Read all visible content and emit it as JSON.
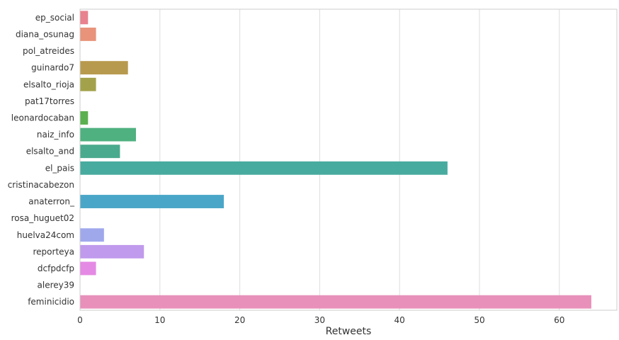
{
  "chart_data": {
    "type": "bar",
    "orientation": "horizontal",
    "categories": [
      "ep_social",
      "diana_osunag",
      "pol_atreides",
      "guinardo7",
      "elsalto_rioja",
      "pat17torres",
      "leonardocaban",
      "naiz_info",
      "elsalto_and",
      "el_pais",
      "cristinacabezon",
      "anaterron_",
      "rosa_huguet02",
      "huelva24com",
      "reporteya",
      "dcfpdcfp",
      "alerey39",
      "feminicidio"
    ],
    "values": [
      1,
      2,
      0,
      6,
      2,
      0,
      1,
      7,
      5,
      46,
      0,
      18,
      0,
      3,
      8,
      2,
      0,
      64
    ],
    "colors": [
      "#e8828e",
      "#e8937a",
      "#d9a36a",
      "#b89a4e",
      "#a3a24a",
      "#8fa84a",
      "#5bb050",
      "#4fb080",
      "#4aaa8e",
      "#48ab9f",
      "#4aa8b2",
      "#4aa6c8",
      "#6aa8e4",
      "#a0a8ec",
      "#c09aec",
      "#e48ae4",
      "#e888cc",
      "#e890ba"
    ],
    "xlabel": "Retweets",
    "ylabel": "",
    "xlim": [
      0,
      67.2
    ],
    "xticks": [
      0,
      10,
      20,
      30,
      40,
      50,
      60
    ],
    "grid": "vertical"
  }
}
